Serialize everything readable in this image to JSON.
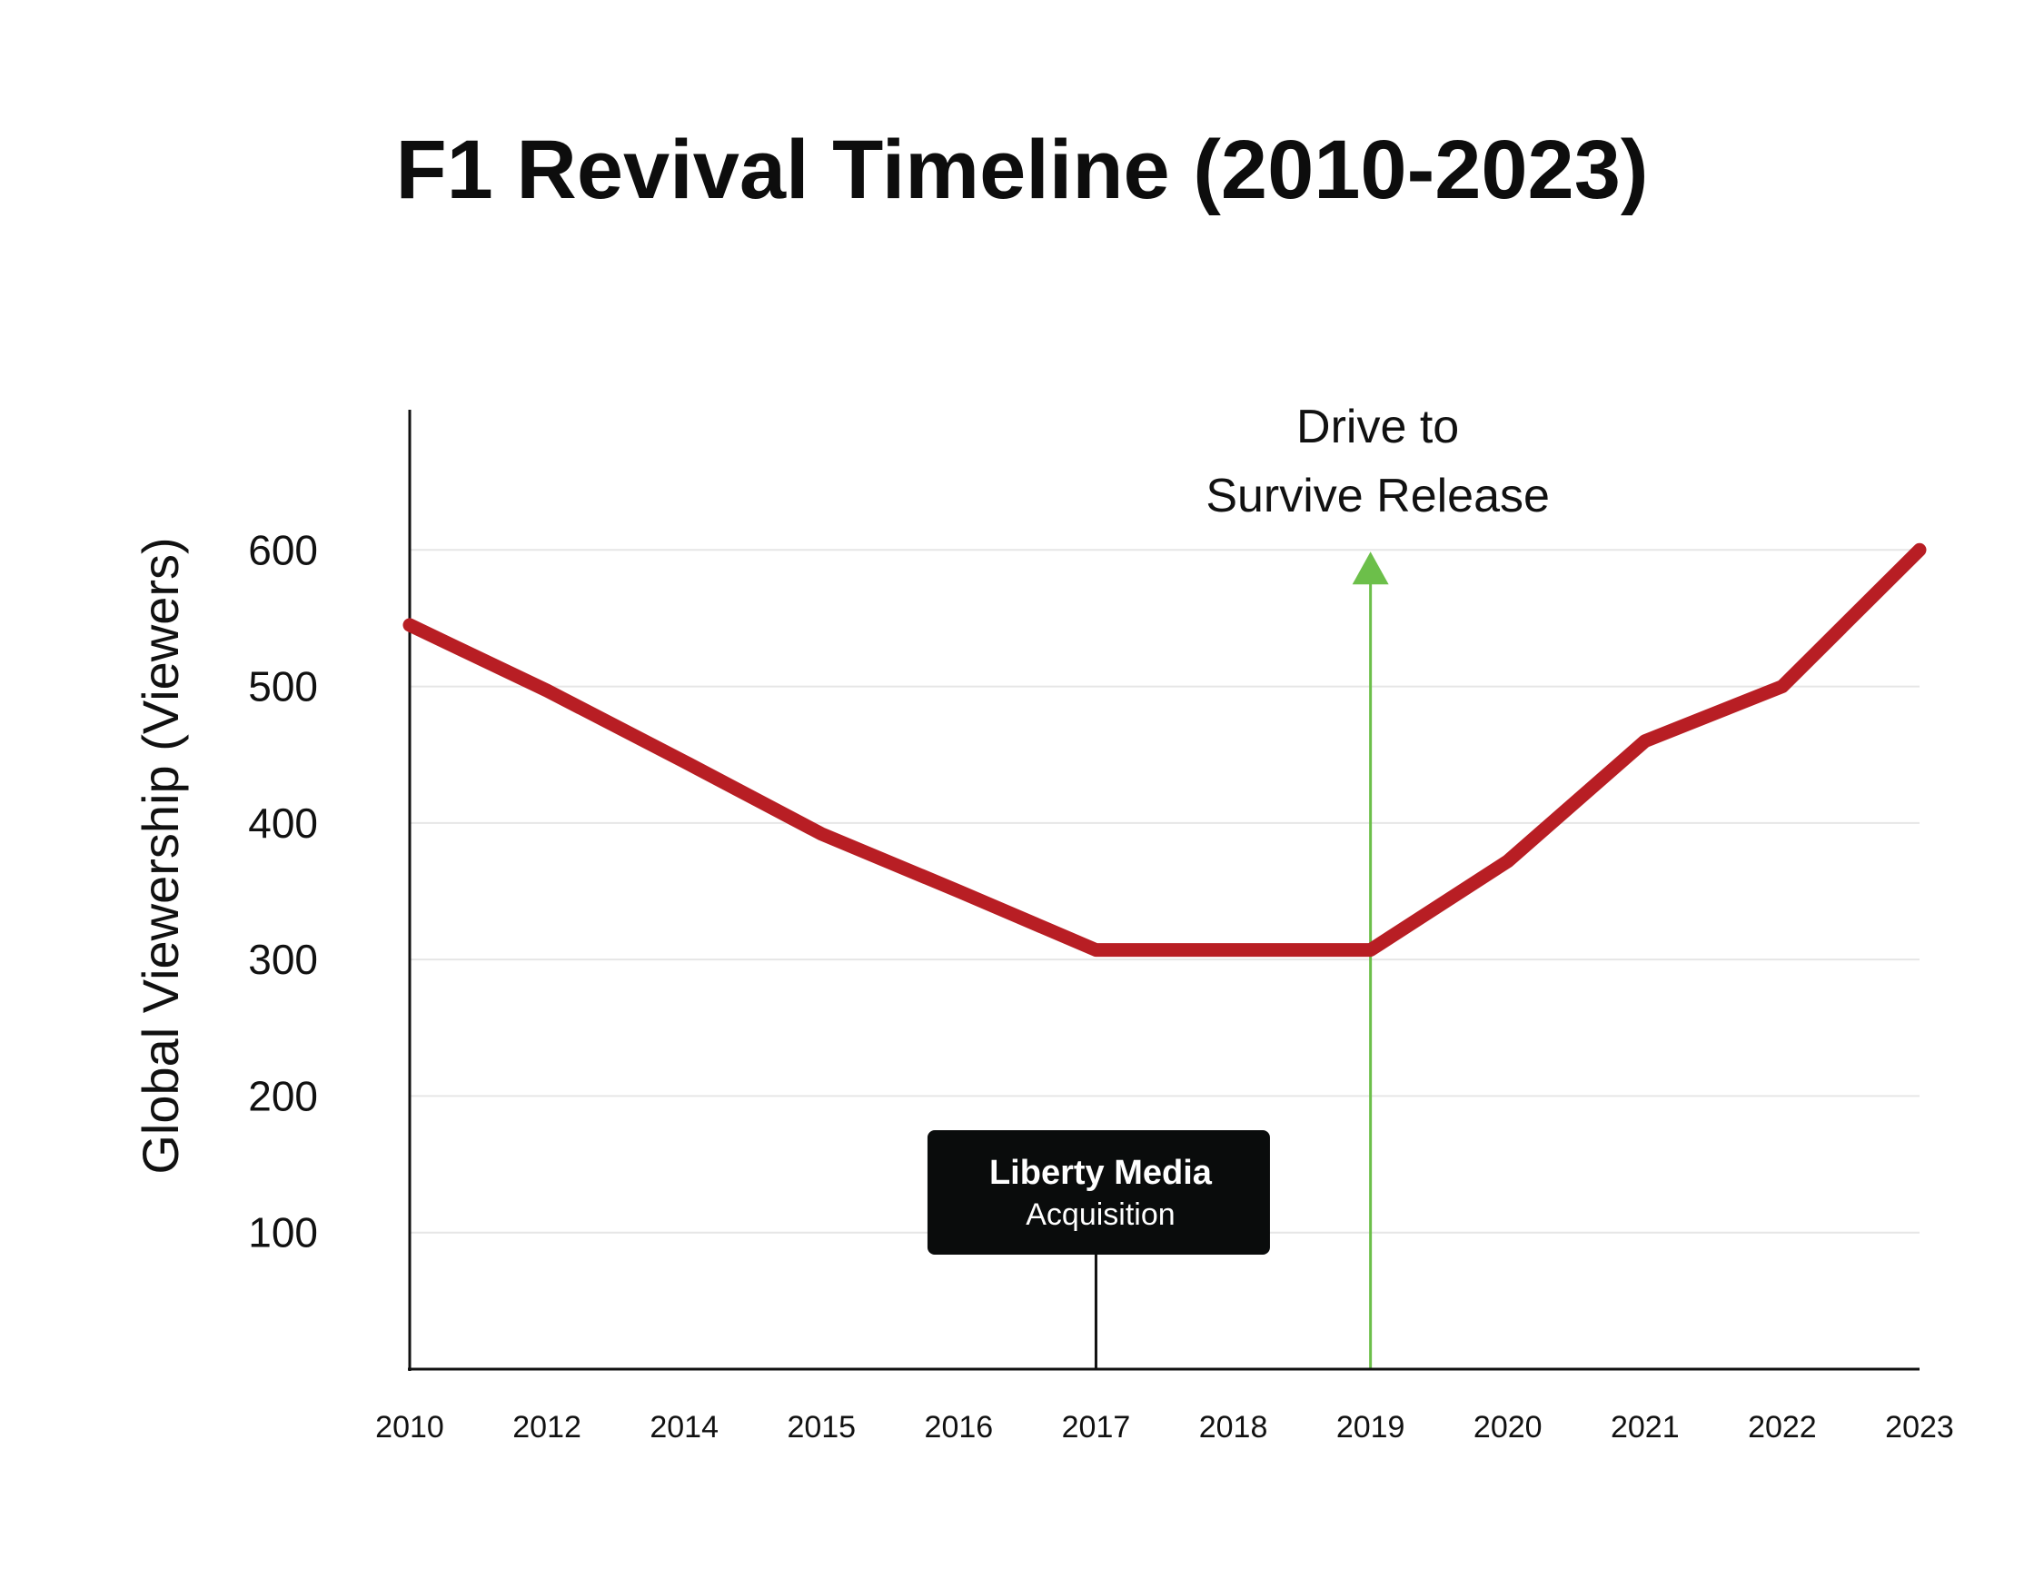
{
  "chart_data": {
    "type": "line",
    "title": "F1 Revival Timeline (2010-2023)",
    "xlabel": "",
    "ylabel": "Global Viewership (Viewers)",
    "categories": [
      "2010",
      "2012",
      "2014",
      "2015",
      "2016",
      "2017",
      "2018",
      "2019",
      "2020",
      "2021",
      "2022",
      "2023"
    ],
    "series": [
      {
        "values": [
          545,
          497,
          445,
          392,
          350,
          307,
          307,
          307,
          372,
          460,
          500,
          600
        ]
      }
    ],
    "y_ticks": [
      "100",
      "200",
      "300",
      "400",
      "500",
      "600"
    ],
    "y_tick_values": [
      100,
      200,
      300,
      400,
      500,
      600
    ],
    "ylim": [
      0,
      700
    ],
    "grid": true,
    "legend": "none",
    "colors": {
      "line": "#b81e24",
      "arrow": "#6cbf4a",
      "box": "#0a0c0c",
      "grid": "#e6e6e6",
      "axis": "#111111"
    },
    "annotations": [
      {
        "id": "drive-to-survive",
        "at": "2019",
        "lines": [
          "Drive to",
          "Survive Release"
        ],
        "style": "arrow"
      },
      {
        "id": "liberty-media",
        "at": "2017",
        "title": "Liberty Media",
        "subtitle": "Acquisition",
        "style": "box"
      }
    ]
  }
}
